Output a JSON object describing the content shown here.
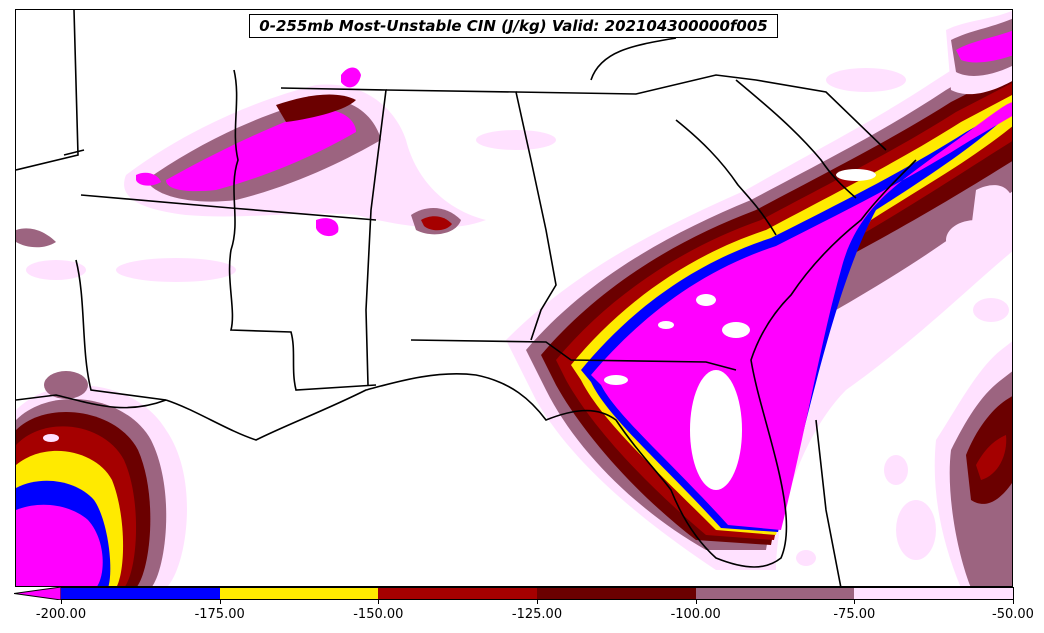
{
  "title": "0-255mb Most-Unstable CIN (J/kg) Valid: 202104300000f005",
  "colorbar": {
    "bins": [
      {
        "from": -200,
        "to": -175,
        "color": "#0000ff"
      },
      {
        "from": -175,
        "to": -150,
        "color": "#ffea00"
      },
      {
        "from": -150,
        "to": -125,
        "color": "#a50000"
      },
      {
        "from": -125,
        "to": -100,
        "color": "#6b0000"
      },
      {
        "from": -100,
        "to": -75,
        "color": "#9c6480"
      },
      {
        "from": -75,
        "to": -50,
        "color": "#ffe1ff"
      }
    ],
    "extend_low_color": "#ff00ff",
    "ticks": [
      "-200.00",
      "-175.00",
      "-150.00",
      "-125.00",
      "-100.00",
      "-75.00",
      "-50.00"
    ]
  },
  "field_colors": {
    "below_min": "#ff00ff",
    "blue": "#0000ff",
    "yellow": "#ffea00",
    "red": "#a50000",
    "darkred": "#6b0000",
    "mauve": "#9c6480",
    "pink": "#ffe1ff"
  }
}
